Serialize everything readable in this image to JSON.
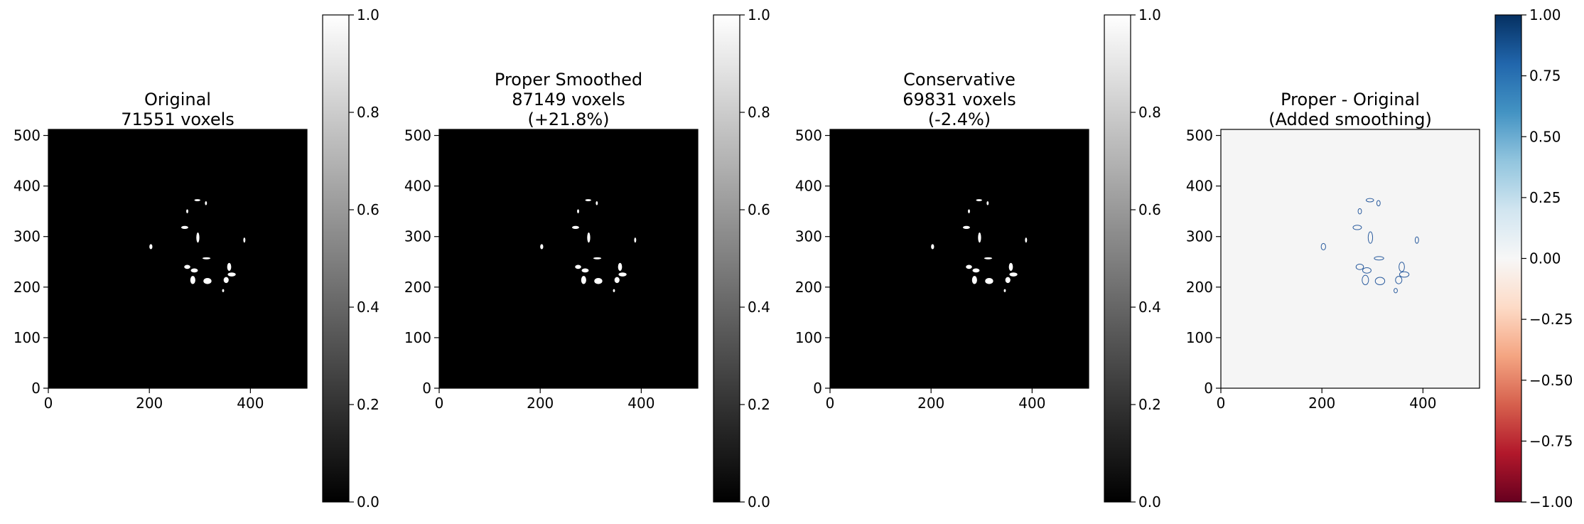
{
  "chart_data": [
    {
      "type": "heatmap",
      "title_lines": [
        "Original",
        "71551 voxels"
      ],
      "xticks": [
        "0",
        "200",
        "400"
      ],
      "yticks": [
        "0",
        "100",
        "200",
        "300",
        "400",
        "500"
      ],
      "xlim": [
        0,
        512
      ],
      "ylim": [
        0,
        512
      ],
      "colormap": "gray",
      "background": "#000000",
      "mask_color": "#ffffff",
      "colorbar": {
        "range": [
          0.0,
          1.0
        ],
        "ticks": [
          "0.0",
          "0.2",
          "0.4",
          "0.6",
          "0.8",
          "1.0"
        ]
      }
    },
    {
      "type": "heatmap",
      "title_lines": [
        "Proper Smoothed",
        "87149 voxels",
        "(+21.8%)"
      ],
      "xticks": [
        "0",
        "200",
        "400"
      ],
      "yticks": [
        "0",
        "100",
        "200",
        "300",
        "400",
        "500"
      ],
      "xlim": [
        0,
        512
      ],
      "ylim": [
        0,
        512
      ],
      "colormap": "gray",
      "background": "#000000",
      "mask_color": "#ffffff",
      "colorbar": {
        "range": [
          0.0,
          1.0
        ],
        "ticks": [
          "0.0",
          "0.2",
          "0.4",
          "0.6",
          "0.8",
          "1.0"
        ]
      }
    },
    {
      "type": "heatmap",
      "title_lines": [
        "Conservative",
        "69831 voxels",
        "(-2.4%)"
      ],
      "xticks": [
        "0",
        "200",
        "400"
      ],
      "yticks": [
        "0",
        "100",
        "200",
        "300",
        "400",
        "500"
      ],
      "xlim": [
        0,
        512
      ],
      "ylim": [
        0,
        512
      ],
      "colormap": "gray",
      "background": "#000000",
      "mask_color": "#ffffff",
      "colorbar": {
        "range": [
          0.0,
          1.0
        ],
        "ticks": [
          "0.0",
          "0.2",
          "0.4",
          "0.6",
          "0.8",
          "1.0"
        ]
      }
    },
    {
      "type": "heatmap",
      "title_lines": [
        "Proper - Original",
        "(Added smoothing)"
      ],
      "xticks": [
        "0",
        "200",
        "400"
      ],
      "yticks": [
        "0",
        "100",
        "200",
        "300",
        "400",
        "500"
      ],
      "xlim": [
        0,
        512
      ],
      "ylim": [
        0,
        512
      ],
      "colormap": "RdBu",
      "background": "#f5f5f5",
      "mask_color": "#2b5c9e",
      "colorbar": {
        "range": [
          -1.0,
          1.0
        ],
        "ticks": [
          "−1.00",
          "−0.75",
          "−0.50",
          "−0.25",
          "0.00",
          "0.25",
          "0.50",
          "0.75",
          "1.00"
        ]
      }
    }
  ],
  "blobs": [
    {
      "x": 203,
      "y": 280,
      "rx": 3,
      "ry": 5
    },
    {
      "x": 295,
      "y": 372,
      "rx": 6,
      "ry": 2
    },
    {
      "x": 312,
      "y": 366,
      "rx": 2,
      "ry": 4
    },
    {
      "x": 275,
      "y": 350,
      "rx": 2,
      "ry": 4
    },
    {
      "x": 270,
      "y": 318,
      "rx": 7,
      "ry": 3
    },
    {
      "x": 296,
      "y": 298,
      "rx": 3,
      "ry": 10
    },
    {
      "x": 388,
      "y": 293,
      "rx": 2,
      "ry": 5
    },
    {
      "x": 313,
      "y": 257,
      "rx": 8,
      "ry": 2
    },
    {
      "x": 275,
      "y": 240,
      "rx": 6,
      "ry": 4
    },
    {
      "x": 289,
      "y": 233,
      "rx": 7,
      "ry": 4
    },
    {
      "x": 286,
      "y": 214,
      "rx": 5,
      "ry": 8
    },
    {
      "x": 315,
      "y": 212,
      "rx": 8,
      "ry": 6
    },
    {
      "x": 358,
      "y": 240,
      "rx": 4,
      "ry": 8
    },
    {
      "x": 363,
      "y": 225,
      "rx": 8,
      "ry": 4
    },
    {
      "x": 352,
      "y": 214,
      "rx": 5,
      "ry": 6
    },
    {
      "x": 346,
      "y": 193,
      "rx": 2,
      "ry": 3
    }
  ]
}
